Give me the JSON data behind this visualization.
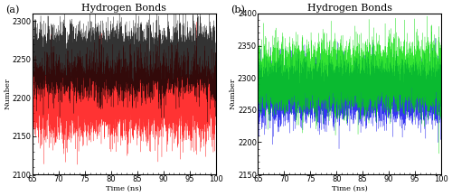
{
  "title": "Hydrogen Bonds",
  "xlabel": "Time (ns)",
  "ylabel": "Number",
  "panel_a": {
    "label": "(a)",
    "black_mean": 2248,
    "black_std": 22,
    "red_mean": 2200,
    "red_std": 25,
    "ylim": [
      2100,
      2310
    ],
    "yticks": [
      2100,
      2150,
      2200,
      2250,
      2300
    ],
    "color_black": "#000000",
    "color_red": "#ff0000"
  },
  "panel_b": {
    "label": "(b)",
    "blue_mean": 2278,
    "blue_std": 22,
    "green_mean": 2300,
    "green_std": 25,
    "ylim": [
      2150,
      2400
    ],
    "yticks": [
      2150,
      2200,
      2250,
      2300,
      2350,
      2400
    ],
    "color_blue": "#0000ee",
    "color_green": "#00dd00"
  },
  "xmin": 65,
  "xmax": 100,
  "xticks": [
    65,
    70,
    75,
    80,
    85,
    90,
    95,
    100
  ],
  "n_points": 7000,
  "linewidth": 0.2,
  "alpha": 0.8,
  "title_fontsize": 8,
  "label_fontsize": 6,
  "tick_fontsize": 6,
  "bg_color": "#f5f5f0"
}
